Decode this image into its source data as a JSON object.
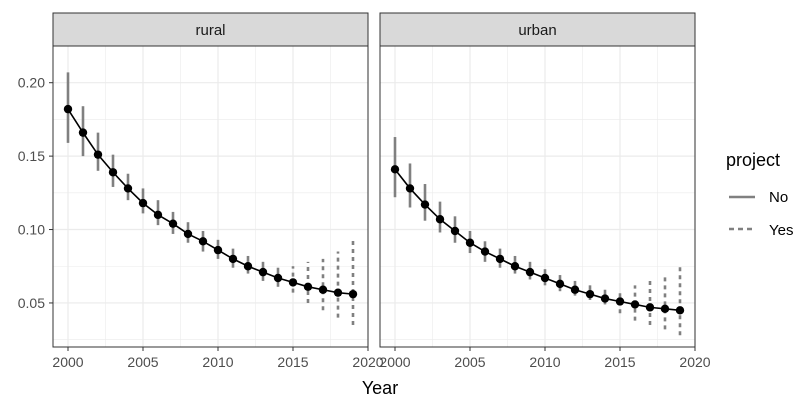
{
  "chart_data": {
    "type": "line",
    "xlabel": "Year",
    "ylabel": "",
    "xlim": [
      1999.0,
      2020.0
    ],
    "ylim": [
      0.02,
      0.225
    ],
    "x_ticks": [
      2000,
      2005,
      2010,
      2015,
      2020
    ],
    "y_ticks": [
      0.05,
      0.1,
      0.15,
      0.2
    ],
    "x_tick_labels": [
      "2000",
      "2005",
      "2010",
      "2015",
      "2020"
    ],
    "y_tick_labels": [
      "0.05",
      "0.10",
      "0.15",
      "0.20"
    ],
    "grid": true,
    "legend": {
      "title": "project",
      "position": "right",
      "entries": [
        {
          "label": "No",
          "line_style": "solid"
        },
        {
          "label": "Yes",
          "line_style": "dashed"
        }
      ]
    },
    "colors": {
      "interval": "#808080",
      "line": "#000000",
      "strip_fill": "#d9d9d9",
      "grid": "#ebebeb"
    },
    "panels": [
      {
        "strip_label": "rural",
        "x": [
          2000,
          2001,
          2002,
          2003,
          2004,
          2005,
          2006,
          2007,
          2008,
          2009,
          2010,
          2011,
          2012,
          2013,
          2014,
          2015,
          2016,
          2017,
          2018,
          2019
        ],
        "estimate": [
          0.182,
          0.166,
          0.151,
          0.139,
          0.128,
          0.118,
          0.11,
          0.104,
          0.097,
          0.092,
          0.086,
          0.08,
          0.075,
          0.071,
          0.067,
          0.064,
          0.061,
          0.059,
          0.057,
          0.056
        ],
        "lower": [
          0.159,
          0.15,
          0.14,
          0.129,
          0.12,
          0.111,
          0.103,
          0.097,
          0.091,
          0.085,
          0.08,
          0.074,
          0.07,
          0.065,
          0.061,
          0.057,
          0.05,
          0.045,
          0.04,
          0.035
        ],
        "upper": [
          0.207,
          0.184,
          0.166,
          0.151,
          0.138,
          0.128,
          0.12,
          0.112,
          0.105,
          0.099,
          0.093,
          0.087,
          0.082,
          0.078,
          0.074,
          0.075,
          0.078,
          0.08,
          0.085,
          0.093
        ],
        "project": [
          "No",
          "No",
          "No",
          "No",
          "No",
          "No",
          "No",
          "No",
          "No",
          "No",
          "No",
          "No",
          "No",
          "No",
          "No",
          "Yes",
          "Yes",
          "Yes",
          "Yes",
          "Yes"
        ]
      },
      {
        "strip_label": "urban",
        "x": [
          2000,
          2001,
          2002,
          2003,
          2004,
          2005,
          2006,
          2007,
          2008,
          2009,
          2010,
          2011,
          2012,
          2013,
          2014,
          2015,
          2016,
          2017,
          2018,
          2019
        ],
        "estimate": [
          0.141,
          0.128,
          0.117,
          0.107,
          0.099,
          0.091,
          0.085,
          0.08,
          0.075,
          0.071,
          0.067,
          0.063,
          0.059,
          0.056,
          0.053,
          0.051,
          0.049,
          0.047,
          0.046,
          0.045
        ],
        "lower": [
          0.122,
          0.115,
          0.106,
          0.098,
          0.091,
          0.084,
          0.078,
          0.074,
          0.07,
          0.066,
          0.062,
          0.058,
          0.055,
          0.052,
          0.049,
          0.043,
          0.038,
          0.035,
          0.032,
          0.028
        ],
        "upper": [
          0.163,
          0.145,
          0.131,
          0.119,
          0.109,
          0.099,
          0.092,
          0.087,
          0.082,
          0.078,
          0.073,
          0.069,
          0.065,
          0.062,
          0.059,
          0.058,
          0.062,
          0.065,
          0.07,
          0.076
        ],
        "project": [
          "No",
          "No",
          "No",
          "No",
          "No",
          "No",
          "No",
          "No",
          "No",
          "No",
          "No",
          "No",
          "No",
          "No",
          "No",
          "Yes",
          "Yes",
          "Yes",
          "Yes",
          "Yes"
        ]
      }
    ]
  }
}
